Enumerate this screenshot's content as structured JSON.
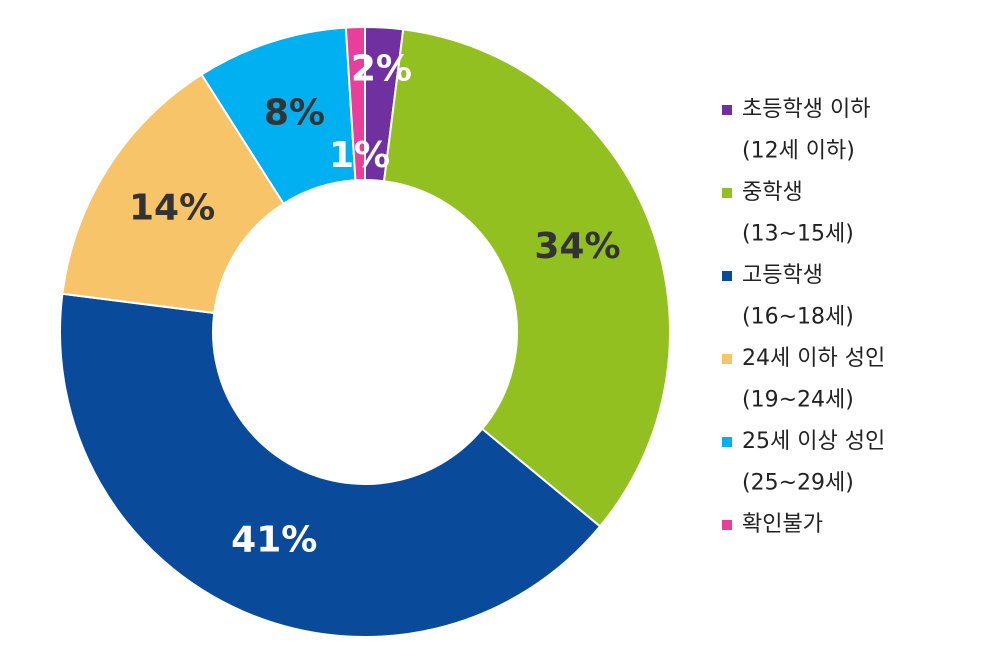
{
  "chart_data": {
    "type": "donut",
    "categories": [
      [
        "초등학생 이하",
        "(12세 이하)"
      ],
      [
        "중학생",
        "(13~15세)"
      ],
      [
        "고등학생",
        "(16~18세)"
      ],
      [
        "24세 이하 성인",
        "(19~24세)"
      ],
      [
        "25세 이상 성인",
        "(25~29세)"
      ],
      [
        "확인불가"
      ]
    ],
    "values": [
      2,
      34,
      41,
      14,
      8,
      1
    ],
    "value_labels": [
      "2%",
      "34%",
      "41%",
      "14%",
      "8%",
      "1%"
    ],
    "colors": [
      "#7030a0",
      "#92c020",
      "#0a4a9a",
      "#f8c46a",
      "#00b0f0",
      "#e83e9c"
    ],
    "label_colors": [
      "#ffffff",
      "#333333",
      "#ffffff",
      "#333333",
      "#333333",
      "#ffffff"
    ]
  }
}
